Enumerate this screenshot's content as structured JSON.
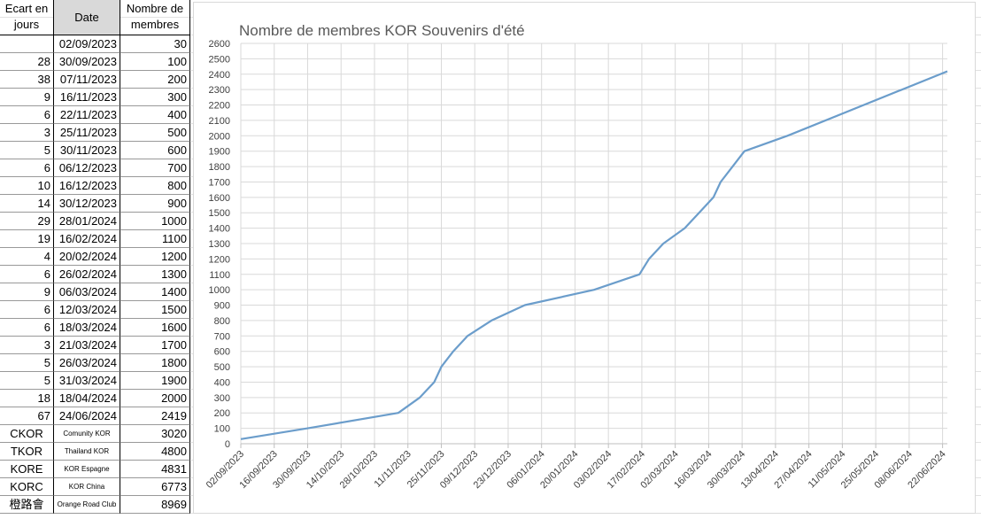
{
  "table": {
    "headers": [
      "Ecart en jours",
      "Date",
      "Nombre de membres"
    ],
    "rows": [
      {
        "date": "02/09/2023",
        "members": 30
      },
      {
        "gap": 28,
        "date": "30/09/2023",
        "members": 100
      },
      {
        "gap": 38,
        "date": "07/11/2023",
        "members": 200
      },
      {
        "gap": 9,
        "date": "16/11/2023",
        "members": 300
      },
      {
        "gap": 6,
        "date": "22/11/2023",
        "members": 400
      },
      {
        "gap": 3,
        "date": "25/11/2023",
        "members": 500
      },
      {
        "gap": 5,
        "date": "30/11/2023",
        "members": 600
      },
      {
        "gap": 6,
        "date": "06/12/2023",
        "members": 700
      },
      {
        "gap": 10,
        "date": "16/12/2023",
        "members": 800
      },
      {
        "gap": 14,
        "date": "30/12/2023",
        "members": 900
      },
      {
        "gap": 29,
        "date": "28/01/2024",
        "members": 1000
      },
      {
        "gap": 19,
        "date": "16/02/2024",
        "members": 1100
      },
      {
        "gap": 4,
        "date": "20/02/2024",
        "members": 1200
      },
      {
        "gap": 6,
        "date": "26/02/2024",
        "members": 1300
      },
      {
        "gap": 9,
        "date": "06/03/2024",
        "members": 1400
      },
      {
        "gap": 6,
        "date": "12/03/2024",
        "members": 1500
      },
      {
        "gap": 6,
        "date": "18/03/2024",
        "members": 1600
      },
      {
        "gap": 3,
        "date": "21/03/2024",
        "members": 1700
      },
      {
        "gap": 5,
        "date": "26/03/2024",
        "members": 1800
      },
      {
        "gap": 5,
        "date": "31/03/2024",
        "members": 1900
      },
      {
        "gap": 18,
        "date": "18/04/2024",
        "members": 2000
      },
      {
        "gap": 67,
        "date": "24/06/2024",
        "members": 2419
      }
    ],
    "groups": [
      {
        "code": "CKOR",
        "name": "Comunity KOR",
        "members": 3020
      },
      {
        "code": "TKOR",
        "name": "Thailand KOR",
        "members": 4800
      },
      {
        "code": "KORE",
        "name": "KOR Espagne",
        "members": 4831
      },
      {
        "code": "KORC",
        "name": "KOR China",
        "members": 6773
      },
      {
        "code": "橙路會",
        "name": "Orange Road Club",
        "members": 8969
      }
    ]
  },
  "chart_data": {
    "type": "line",
    "title": "Nombre de membres KOR Souvenirs d'été",
    "x": [
      "02/09/2023",
      "30/09/2023",
      "07/11/2023",
      "16/11/2023",
      "22/11/2023",
      "25/11/2023",
      "30/11/2023",
      "06/12/2023",
      "16/12/2023",
      "30/12/2023",
      "28/01/2024",
      "16/02/2024",
      "20/02/2024",
      "26/02/2024",
      "06/03/2024",
      "12/03/2024",
      "18/03/2024",
      "21/03/2024",
      "26/03/2024",
      "31/03/2024",
      "18/04/2024",
      "24/06/2024"
    ],
    "values": [
      30,
      100,
      200,
      300,
      400,
      500,
      600,
      700,
      800,
      900,
      1000,
      1100,
      1200,
      1300,
      1400,
      1500,
      1600,
      1700,
      1800,
      1900,
      2000,
      2419
    ],
    "color": "#6b9dcb",
    "xlim": [
      "02/09/2023",
      "24/06/2024"
    ],
    "xticks": [
      "02/09/2023",
      "16/09/2023",
      "30/09/2023",
      "14/10/2023",
      "28/10/2023",
      "11/11/2023",
      "25/11/2023",
      "09/12/2023",
      "23/12/2023",
      "06/01/2024",
      "20/01/2024",
      "03/02/2024",
      "17/02/2024",
      "02/03/2024",
      "16/03/2024",
      "30/03/2024",
      "13/04/2024",
      "27/04/2024",
      "11/05/2024",
      "25/05/2024",
      "08/06/2024",
      "22/06/2024"
    ],
    "ylim": [
      0,
      2600
    ],
    "yticks": [
      0,
      100,
      200,
      300,
      400,
      500,
      600,
      700,
      800,
      900,
      1000,
      1100,
      1200,
      1300,
      1400,
      1500,
      1600,
      1700,
      1800,
      1900,
      2000,
      2100,
      2200,
      2300,
      2400,
      2500,
      2600
    ],
    "grid": true
  }
}
